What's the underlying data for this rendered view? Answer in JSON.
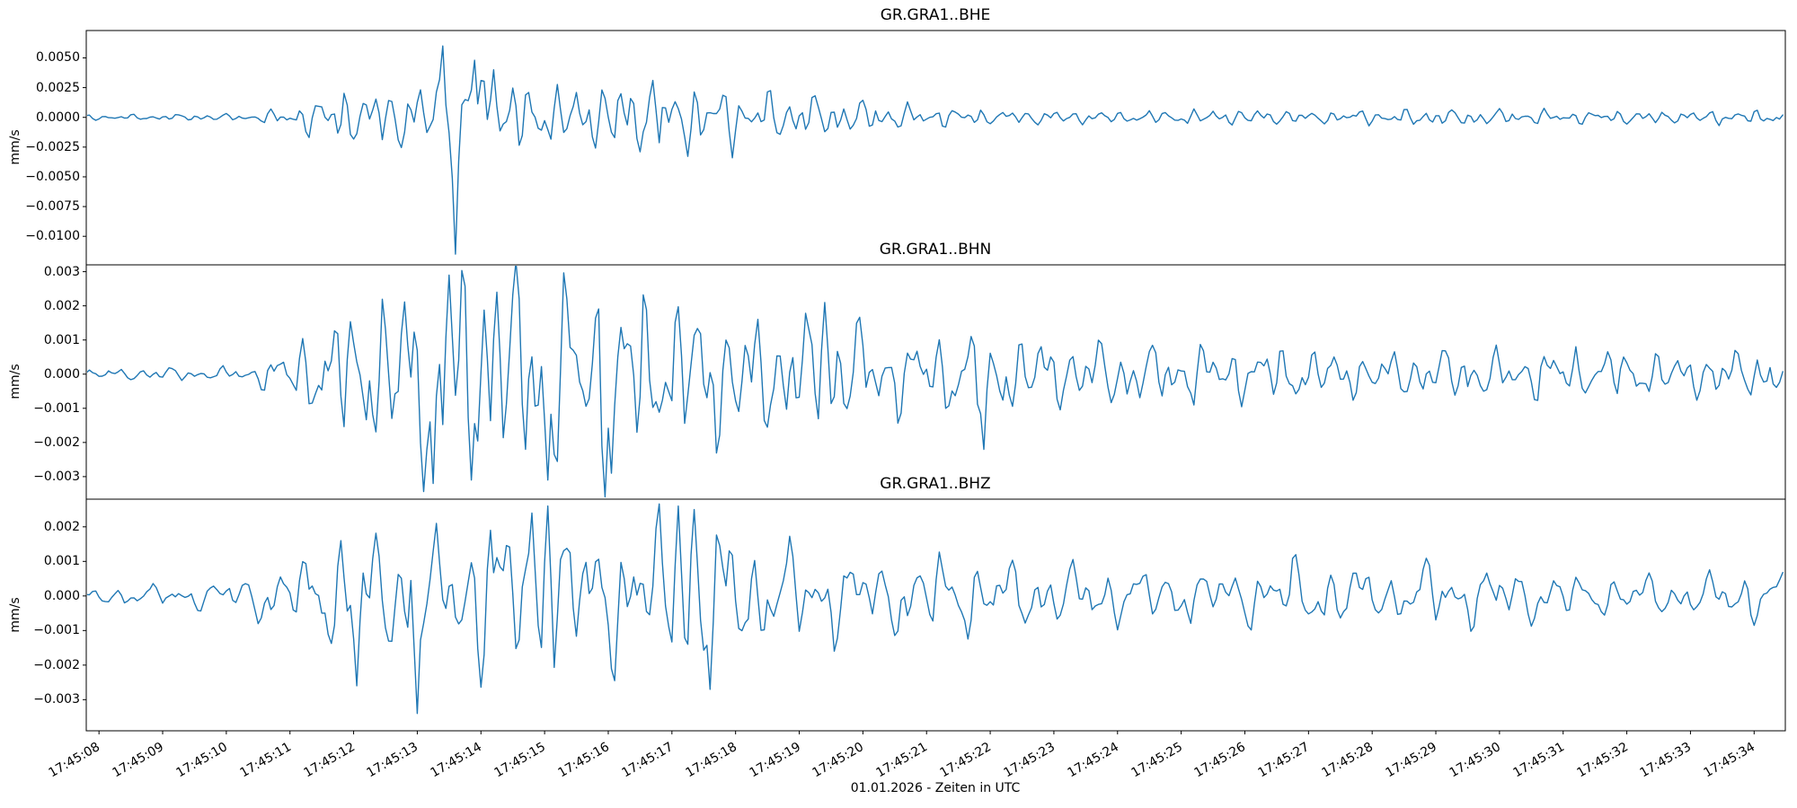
{
  "figure": {
    "xlabel": "01.01.2026 - Zeiten in UTC",
    "line_color": "#1f77b4",
    "axes_color": "#000000",
    "background_color": "#ffffff"
  },
  "chart_data": {
    "type": "line",
    "kind": "seismogram-waveforms",
    "xlabel": "01.01.2026 - Zeiten in UTC",
    "x_domain_seconds_after_174500": [
      7.8,
      34.49
    ],
    "x_ticks_seconds": [
      8,
      9,
      10,
      11,
      12,
      13,
      14,
      15,
      16,
      17,
      18,
      19,
      20,
      21,
      22,
      23,
      24,
      25,
      26,
      27,
      28,
      29,
      30,
      31,
      32,
      33,
      34
    ],
    "x_tick_labels": [
      "17:45:08",
      "17:45:09",
      "17:45:10",
      "17:45:11",
      "17:45:12",
      "17:45:13",
      "17:45:14",
      "17:45:15",
      "17:45:16",
      "17:45:17",
      "17:45:18",
      "17:45:19",
      "17:45:20",
      "17:45:21",
      "17:45:22",
      "17:45:23",
      "17:45:24",
      "17:45:25",
      "17:45:26",
      "17:45:27",
      "17:45:28",
      "17:45:29",
      "17:45:30",
      "17:45:31",
      "17:45:32",
      "17:45:33",
      "17:45:34"
    ],
    "grid": false,
    "legend": "none",
    "series": [
      {
        "title": "GR.GRA1..BHE",
        "ylabel": "mm/s",
        "ylim": [
          -0.0124,
          0.0073
        ],
        "yticks": [
          0.005,
          0.0025,
          0.0,
          -0.0025,
          -0.005,
          -0.0075,
          -0.01
        ],
        "ytick_labels": [
          "0.0050",
          "0.0025",
          "0.0000",
          "−0.0025",
          "−0.0050",
          "−0.0075",
          "−0.0100"
        ],
        "peak_min": -0.0115,
        "peak_min_time": "17:45:13.6",
        "envelope": [
          [
            7.8,
            0.0002
          ],
          [
            10.4,
            0.00028
          ],
          [
            11.0,
            0.0009
          ],
          [
            11.6,
            0.0019
          ],
          [
            12.4,
            0.0024
          ],
          [
            13.2,
            0.0028
          ],
          [
            13.8,
            0.0034
          ],
          [
            14.5,
            0.0028
          ],
          [
            15.5,
            0.0026
          ],
          [
            16.5,
            0.0028
          ],
          [
            17.5,
            0.0025
          ],
          [
            18.5,
            0.0021
          ],
          [
            19.5,
            0.0017
          ],
          [
            20.3,
            0.0012
          ],
          [
            21.2,
            0.0008
          ],
          [
            22.3,
            0.00055
          ],
          [
            24.0,
            0.0005
          ],
          [
            26.0,
            0.00065
          ],
          [
            27.5,
            0.0005
          ],
          [
            29.0,
            0.0007
          ],
          [
            30.5,
            0.00055
          ],
          [
            32.0,
            0.0005
          ],
          [
            33.5,
            0.00055
          ],
          [
            34.5,
            0.0006
          ]
        ],
        "features": [
          [
            13.42,
            0.006
          ],
          [
            13.6,
            -0.0115
          ],
          [
            13.9,
            0.0048
          ],
          [
            14.2,
            0.004
          ],
          [
            16.7,
            0.0031
          ]
        ],
        "synth": {
          "seed": 11,
          "freqs": [
            1.3,
            2.7,
            4.2,
            6.0
          ],
          "weights": [
            0.5,
            0.9,
            1.0,
            0.55
          ],
          "noise": 0.35,
          "sample_rate_hz": 20
        }
      },
      {
        "title": "GR.GRA1..BHN",
        "ylabel": "mm/s",
        "ylim": [
          -0.00366,
          0.0032
        ],
        "yticks": [
          0.003,
          0.002,
          0.001,
          0.0,
          -0.001,
          -0.002,
          -0.003
        ],
        "ytick_labels": [
          "0.003",
          "0.002",
          "0.001",
          "0.000",
          "−0.001",
          "−0.002",
          "−0.003"
        ],
        "peak_min": -0.0032,
        "peak_min_time": "17:45:13.3",
        "envelope": [
          [
            7.8,
            0.00015
          ],
          [
            10.4,
            0.0002
          ],
          [
            11.1,
            0.0009
          ],
          [
            11.8,
            0.0018
          ],
          [
            12.5,
            0.0023
          ],
          [
            13.2,
            0.0028
          ],
          [
            13.9,
            0.0028
          ],
          [
            14.7,
            0.0026
          ],
          [
            15.5,
            0.0028
          ],
          [
            16.3,
            0.0026
          ],
          [
            17.1,
            0.0022
          ],
          [
            17.9,
            0.0017
          ],
          [
            18.7,
            0.0015
          ],
          [
            19.4,
            0.0018
          ],
          [
            20.2,
            0.0013
          ],
          [
            21.0,
            0.0011
          ],
          [
            21.9,
            0.0013
          ],
          [
            22.7,
            0.001
          ],
          [
            23.5,
            0.0009
          ],
          [
            24.5,
            0.00085
          ],
          [
            25.5,
            0.0008
          ],
          [
            26.5,
            0.00075
          ],
          [
            27.5,
            0.0007
          ],
          [
            28.5,
            0.00065
          ],
          [
            29.5,
            0.0007
          ],
          [
            30.5,
            0.00065
          ],
          [
            31.5,
            0.0007
          ],
          [
            32.5,
            0.00065
          ],
          [
            33.5,
            0.0006
          ],
          [
            34.5,
            0.0007
          ]
        ],
        "features": [
          [
            13.26,
            -0.0032
          ],
          [
            13.52,
            0.0029
          ],
          [
            13.85,
            -0.0031
          ],
          [
            14.25,
            0.0024
          ],
          [
            15.05,
            -0.0031
          ],
          [
            16.05,
            -0.0029
          ],
          [
            19.4,
            0.0021
          ],
          [
            21.9,
            -0.0022
          ]
        ],
        "synth": {
          "seed": 23,
          "freqs": [
            1.1,
            2.4,
            3.9,
            5.6
          ],
          "weights": [
            0.6,
            1.0,
            0.9,
            0.5
          ],
          "noise": 0.35,
          "sample_rate_hz": 20
        }
      },
      {
        "title": "GR.GRA1..BHZ",
        "ylabel": "mm/s",
        "ylim": [
          -0.0039,
          0.0028
        ],
        "yticks": [
          0.002,
          0.001,
          0.0,
          -0.001,
          -0.002,
          -0.003
        ],
        "ytick_labels": [
          "0.002",
          "0.001",
          "0.000",
          "−0.001",
          "−0.002",
          "−0.003"
        ],
        "peak_min": -0.0034,
        "peak_min_time": "17:45:13.0",
        "envelope": [
          [
            7.8,
            0.00022
          ],
          [
            9.2,
            0.0003
          ],
          [
            10.2,
            0.0005
          ],
          [
            11.0,
            0.0009
          ],
          [
            11.8,
            0.0013
          ],
          [
            12.6,
            0.0018
          ],
          [
            13.4,
            0.002
          ],
          [
            14.2,
            0.0019
          ],
          [
            15.0,
            0.0023
          ],
          [
            15.8,
            0.0017
          ],
          [
            16.6,
            0.0019
          ],
          [
            17.3,
            0.0023
          ],
          [
            17.8,
            0.0019
          ],
          [
            18.6,
            0.0015
          ],
          [
            19.4,
            0.0012
          ],
          [
            20.2,
            0.001
          ],
          [
            21.0,
            0.0011
          ],
          [
            22.0,
            0.001
          ],
          [
            23.0,
            0.00085
          ],
          [
            24.0,
            0.0008
          ],
          [
            25.0,
            0.0007
          ],
          [
            26.0,
            0.00075
          ],
          [
            27.0,
            0.001
          ],
          [
            28.0,
            0.0007
          ],
          [
            29.2,
            0.00095
          ],
          [
            30.0,
            0.0008
          ],
          [
            31.0,
            0.0006
          ],
          [
            32.0,
            0.00055
          ],
          [
            33.0,
            0.00055
          ],
          [
            34.5,
            0.0007
          ]
        ],
        "features": [
          [
            11.8,
            0.0016
          ],
          [
            12.05,
            -0.0026
          ],
          [
            13.0,
            -0.0034
          ],
          [
            13.3,
            0.0021
          ],
          [
            14.15,
            0.0019
          ],
          [
            14.8,
            0.0024
          ],
          [
            15.05,
            0.0026
          ],
          [
            17.1,
            0.0026
          ],
          [
            17.35,
            0.0025
          ],
          [
            17.6,
            -0.0027
          ]
        ],
        "synth": {
          "seed": 37,
          "freqs": [
            0.9,
            2.0,
            3.4,
            5.2
          ],
          "weights": [
            0.7,
            1.0,
            0.85,
            0.45
          ],
          "noise": 0.3,
          "sample_rate_hz": 20
        }
      }
    ]
  }
}
